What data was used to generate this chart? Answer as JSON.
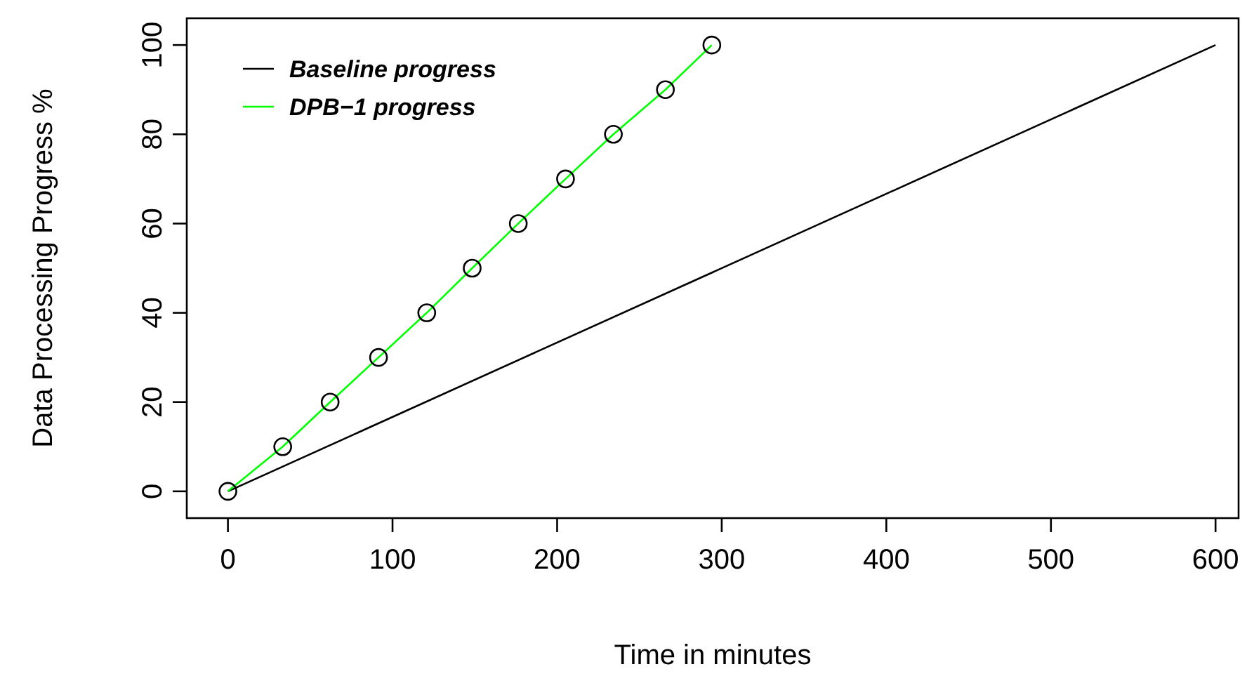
{
  "chart_data": {
    "type": "line",
    "xlabel": "Time in minutes",
    "ylabel": "Data Processing Progress %",
    "xlim": [
      -25,
      614
    ],
    "ylim": [
      -6,
      106
    ],
    "xticks": [
      0,
      100,
      200,
      300,
      400,
      500,
      600
    ],
    "yticks": [
      0,
      20,
      40,
      60,
      80,
      100
    ],
    "grid": false,
    "legend": "top left",
    "series": [
      {
        "name": "Baseline progress",
        "color": "#000000",
        "x": [
          0,
          600
        ],
        "values": [
          0,
          100
        ]
      },
      {
        "name": "DPB−1 progress",
        "color": "#00ff00",
        "x": [
          0,
          33.3,
          62.1,
          91.5,
          120.8,
          148.4,
          176.4,
          205.1,
          234.2,
          265.8,
          294
        ],
        "values": [
          0,
          10,
          20,
          30,
          40,
          50,
          60,
          70,
          80,
          90,
          100
        ],
        "marker": "circle"
      }
    ]
  }
}
